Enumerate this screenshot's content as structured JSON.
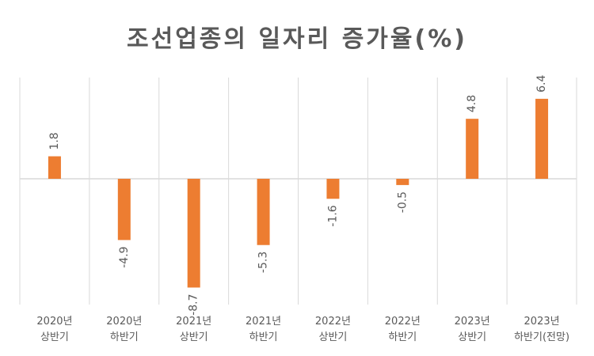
{
  "chart_data": {
    "type": "bar",
    "title": "조선업종의 일자리 증가율(%)",
    "categories": [
      [
        "2020년",
        "상반기"
      ],
      [
        "2020년",
        "하반기"
      ],
      [
        "2021년",
        "상반기"
      ],
      [
        "2021년",
        "하반기"
      ],
      [
        "2022년",
        "상반기"
      ],
      [
        "2022년",
        "하반기"
      ],
      [
        "2023년",
        "상반기"
      ],
      [
        "2023년",
        "하반기(전망)"
      ]
    ],
    "values": [
      1.8,
      -4.9,
      -8.7,
      -5.3,
      -1.6,
      -0.5,
      4.8,
      6.4
    ],
    "data_labels": [
      "1.8",
      "-4.9",
      "-8.7",
      "-5.3",
      "-1.6",
      "-0.5",
      "4.8",
      "6.4"
    ],
    "bar_color": "#ED7D31",
    "grid": "vertical-category-separators",
    "legend": "none"
  }
}
